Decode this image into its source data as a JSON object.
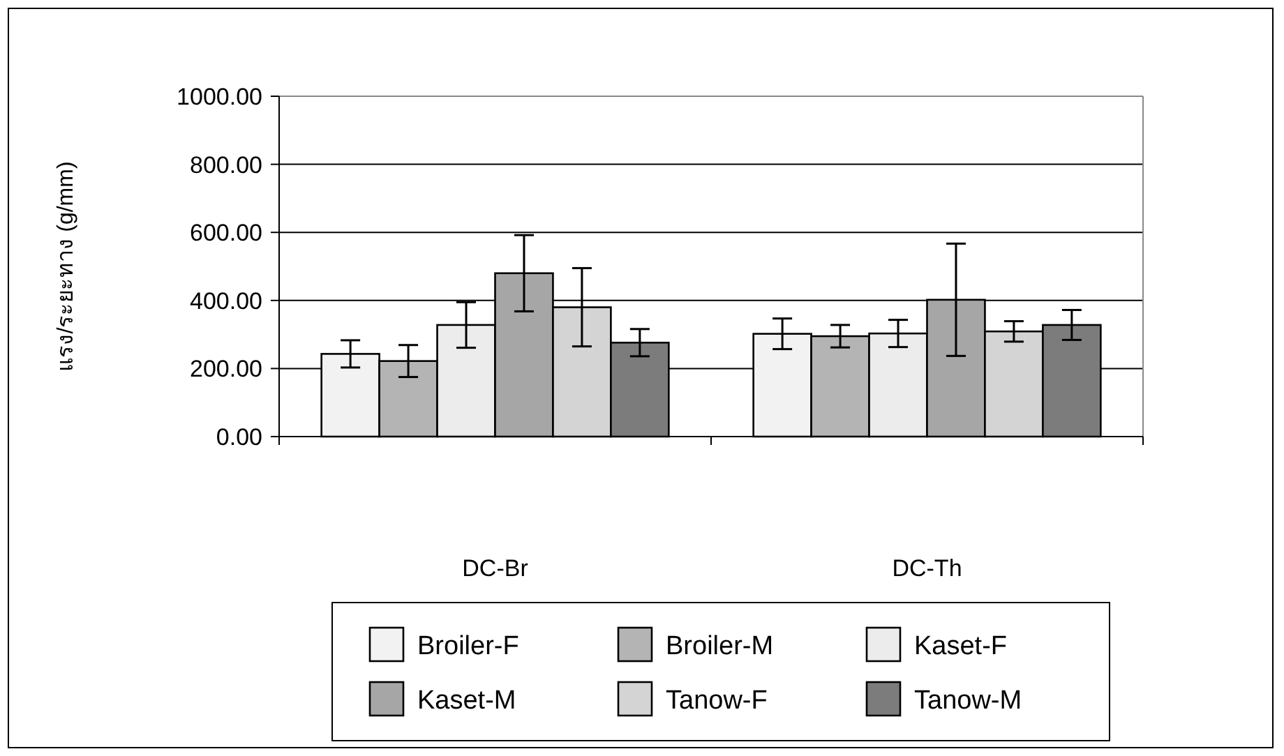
{
  "chart_data": {
    "type": "bar",
    "ylabel": "แรง/ระยะทาง (g/mm)",
    "categories": [
      "DC-Br",
      "DC-Th"
    ],
    "series": [
      {
        "name": "Broiler-F",
        "color": "#f2f2f2",
        "values": [
          243,
          302
        ],
        "errors": [
          40,
          45
        ]
      },
      {
        "name": "Broiler-M",
        "color": "#b4b4b4",
        "values": [
          222,
          295
        ],
        "errors": [
          47,
          33
        ]
      },
      {
        "name": "Kaset-F",
        "color": "#ececec",
        "values": [
          328,
          303
        ],
        "errors": [
          67,
          40
        ]
      },
      {
        "name": "Kaset-M",
        "color": "#a6a6a6",
        "values": [
          480,
          402
        ],
        "errors": [
          112,
          165
        ]
      },
      {
        "name": "Tanow-F",
        "color": "#d4d4d4",
        "values": [
          380,
          309
        ],
        "errors": [
          115,
          30
        ]
      },
      {
        "name": "Tanow-M",
        "color": "#7c7c7c",
        "values": [
          276,
          328
        ],
        "errors": [
          40,
          44
        ]
      }
    ],
    "ylim": [
      0,
      1000
    ],
    "yticks": [
      {
        "value": 0,
        "label": "0.00"
      },
      {
        "value": 200,
        "label": "200.00"
      },
      {
        "value": 400,
        "label": "400.00"
      },
      {
        "value": 600,
        "label": "600.00"
      },
      {
        "value": 800,
        "label": "800.00"
      },
      {
        "value": 1000,
        "label": "1000.00"
      }
    ],
    "grid": "y",
    "legend": "bottom"
  }
}
